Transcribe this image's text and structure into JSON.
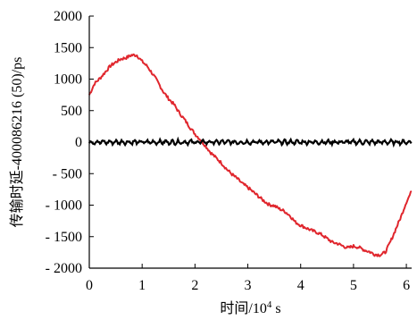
{
  "chart_data": {
    "type": "line",
    "xlabel": "时间/10",
    "xlabel_sup": "4",
    "xlabel_unit": " s",
    "ylabel": "传输时延-400086216 (50)/ps",
    "xlim": [
      0,
      6.1
    ],
    "ylim": [
      -2000,
      2000
    ],
    "x_ticks": [
      "0",
      "1",
      "2",
      "3",
      "4",
      "5",
      "6"
    ],
    "y_ticks": [
      "2000",
      "1500",
      "1000",
      "500",
      "0",
      "- 500",
      "- 1000",
      "- 1500",
      "- 2000"
    ],
    "grid": false,
    "legend": "none",
    "series": [
      {
        "color": "#e0262d",
        "x": [
          0,
          0.1,
          0.2,
          0.3,
          0.4,
          0.5,
          0.6,
          0.7,
          0.8,
          0.9,
          1.0,
          1.1,
          1.2,
          1.3,
          1.4,
          1.5,
          1.6,
          1.7,
          1.8,
          1.9,
          2.0,
          2.1,
          2.2,
          2.3,
          2.4,
          2.5,
          2.6,
          2.7,
          2.8,
          2.9,
          3.0,
          3.1,
          3.2,
          3.3,
          3.4,
          3.5,
          3.6,
          3.7,
          3.8,
          3.9,
          4.0,
          4.1,
          4.2,
          4.3,
          4.4,
          4.5,
          4.6,
          4.7,
          4.8,
          4.9,
          5.0,
          5.1,
          5.2,
          5.3,
          5.4,
          5.5,
          5.6,
          5.7,
          5.8,
          5.9,
          6.0,
          6.1
        ],
        "y": [
          750,
          930,
          1010,
          1110,
          1210,
          1270,
          1320,
          1340,
          1380,
          1380,
          1280,
          1200,
          1080,
          950,
          800,
          690,
          600,
          470,
          360,
          240,
          130,
          40,
          -60,
          -170,
          -250,
          -330,
          -430,
          -510,
          -580,
          -660,
          -720,
          -790,
          -860,
          -930,
          -990,
          -1010,
          -1060,
          -1100,
          -1170,
          -1270,
          -1320,
          -1360,
          -1400,
          -1430,
          -1470,
          -1530,
          -1590,
          -1610,
          -1650,
          -1680,
          -1650,
          -1670,
          -1710,
          -1740,
          -1780,
          -1790,
          -1750,
          -1580,
          -1380,
          -1180,
          -950,
          -780
        ]
      },
      {
        "color": "#000000",
        "x": [
          0,
          6.1
        ],
        "y": [
          0,
          0
        ],
        "noise_amplitude": 40
      }
    ]
  }
}
